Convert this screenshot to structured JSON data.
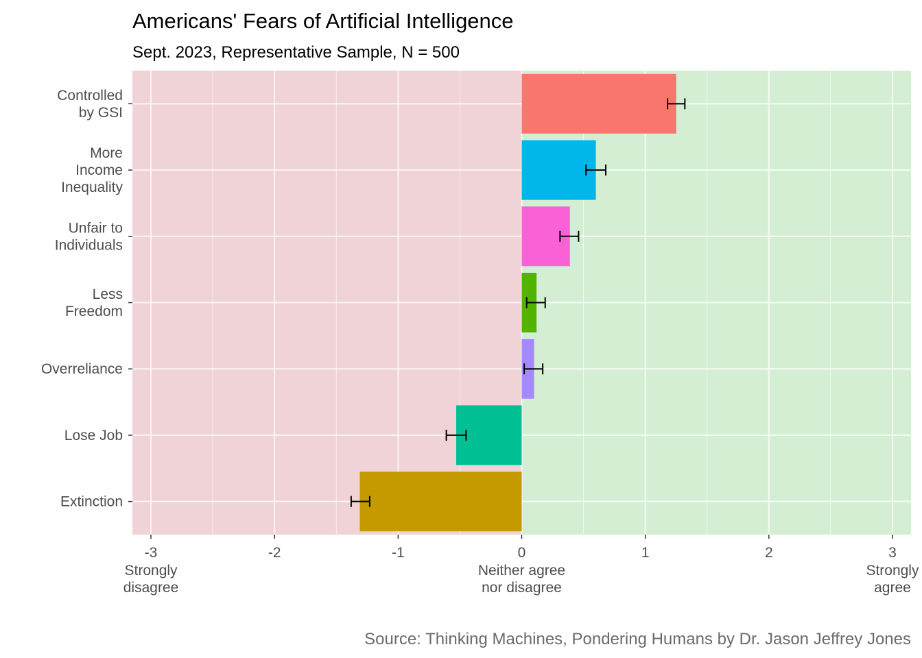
{
  "chart_data": {
    "type": "bar",
    "orientation": "horizontal",
    "title": "Americans' Fears of Artificial Intelligence",
    "subtitle": "Sept. 2023, Representative Sample, N = 500",
    "caption": "Source: Thinking Machines, Pondering Humans by Dr. Jason Jeffrey Jones",
    "xlim": [
      -3.15,
      3.15
    ],
    "x_ticks": [
      -3,
      -2,
      -1,
      0,
      1,
      2,
      3
    ],
    "x_tick_labels": [
      "-3",
      "-2",
      "-1",
      "0",
      "1",
      "2",
      "3"
    ],
    "x_anchor_labels": [
      {
        "x": -3,
        "lines": [
          "Strongly",
          "disagree"
        ]
      },
      {
        "x": 0,
        "lines": [
          "Neither agree",
          "nor disagree"
        ]
      },
      {
        "x": 3,
        "lines": [
          "Strongly",
          "agree"
        ]
      }
    ],
    "background_regions": [
      {
        "from": -3.15,
        "to": 0,
        "color": "#efd3d6"
      },
      {
        "from": 0,
        "to": 3.15,
        "color": "#d4eed4"
      }
    ],
    "grid": true,
    "categories": [
      {
        "lines": [
          "Controlled",
          "by GSI"
        ],
        "value": 1.25,
        "err_low": 1.18,
        "err_high": 1.32,
        "color": "#F8766D"
      },
      {
        "lines": [
          "More",
          "Income",
          "Inequality"
        ],
        "value": 0.6,
        "err_low": 0.52,
        "err_high": 0.68,
        "color": "#00B6EB"
      },
      {
        "lines": [
          "Unfair to",
          "Individuals"
        ],
        "value": 0.39,
        "err_low": 0.31,
        "err_high": 0.46,
        "color": "#FB61D7"
      },
      {
        "lines": [
          "Less",
          "Freedom"
        ],
        "value": 0.12,
        "err_low": 0.04,
        "err_high": 0.19,
        "color": "#53B400"
      },
      {
        "lines": [
          "Overreliance"
        ],
        "value": 0.1,
        "err_low": 0.02,
        "err_high": 0.17,
        "color": "#A58AFF"
      },
      {
        "lines": [
          "Lose Job"
        ],
        "value": -0.53,
        "err_low": -0.61,
        "err_high": -0.45,
        "color": "#00C094"
      },
      {
        "lines": [
          "Extinction"
        ],
        "value": -1.31,
        "err_low": -1.38,
        "err_high": -1.23,
        "color": "#C49A00"
      }
    ]
  }
}
